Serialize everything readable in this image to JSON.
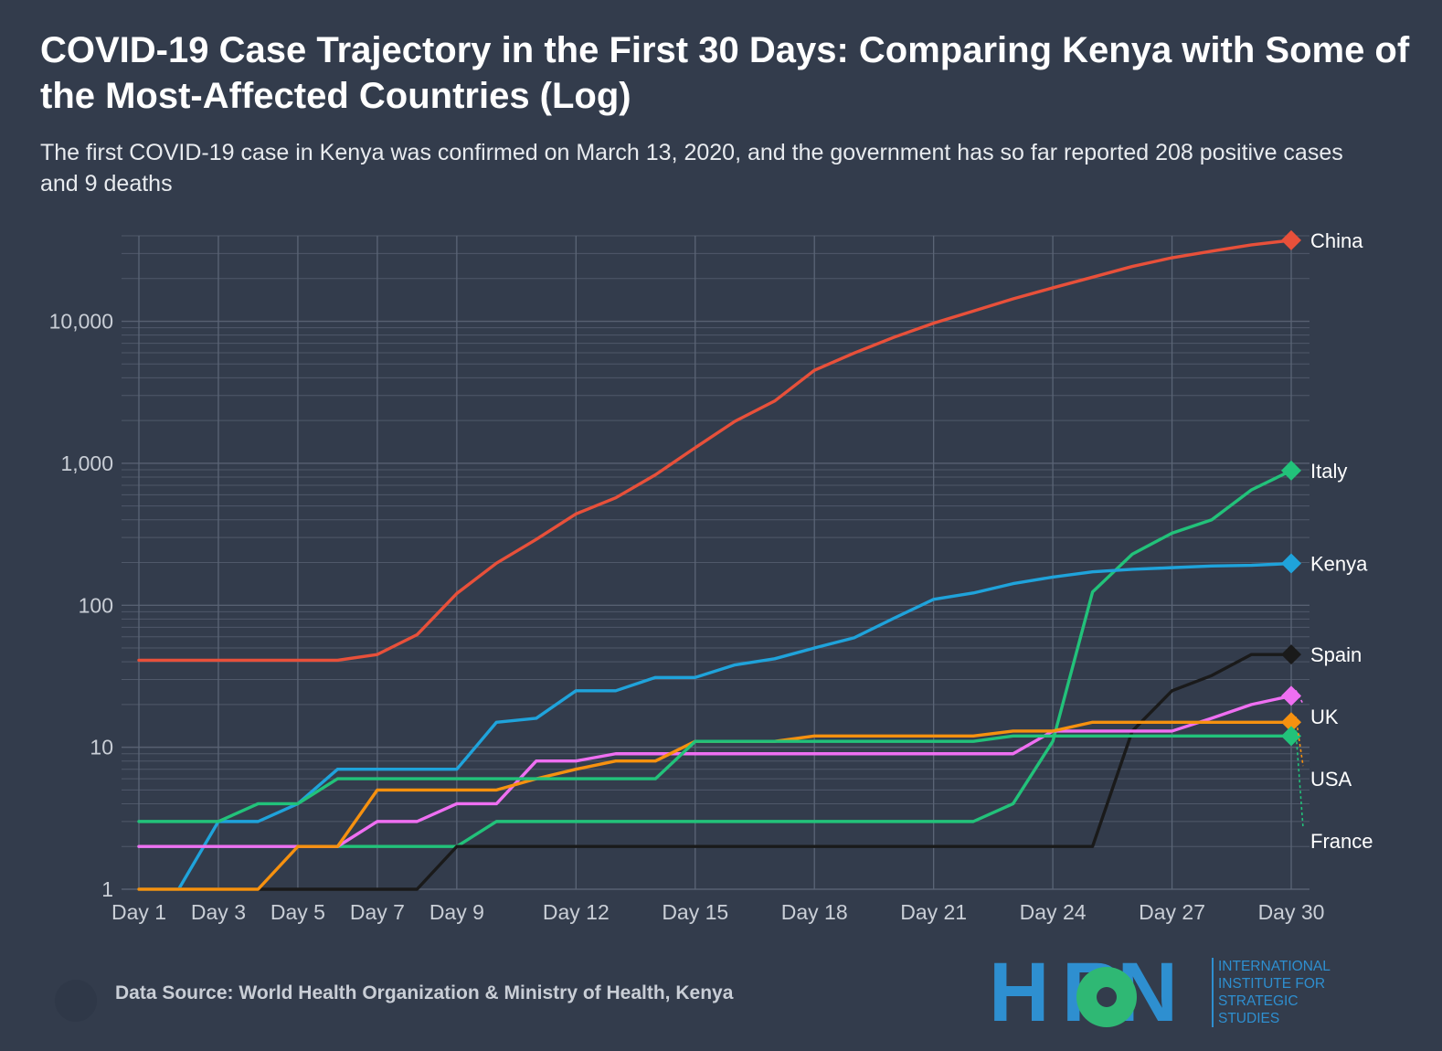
{
  "header": {
    "title": "COVID-19 Case Trajectory in the First 30 Days: Comparing Kenya with Some of the Most-Affected Countries (Log)",
    "subtitle": "The first COVID-19 case in Kenya was confirmed on March 13, 2020, and the government has so far reported 208 positive cases and 9 deaths"
  },
  "footer": {
    "source": "Data Source: World Health Organization & Ministry of Health, Kenya"
  },
  "logo": {
    "word": "H  RN",
    "text": "INTERNATIONAL\nINSTITUTE FOR\nSTRATEGIC\nSTUDIES"
  },
  "chart_data": {
    "type": "line",
    "title": "COVID-19 Case Trajectory in the First 30 Days: Comparing Kenya with Some of the Most-Affected Countries (Log)",
    "xlabel": "",
    "ylabel": "",
    "y_scale": "log",
    "ylim": [
      1,
      40000
    ],
    "grid": true,
    "legend": "direct labels at line ends (right)",
    "x": [
      1,
      2,
      3,
      4,
      5,
      6,
      7,
      8,
      9,
      10,
      11,
      12,
      13,
      14,
      15,
      16,
      17,
      18,
      19,
      20,
      21,
      22,
      23,
      24,
      25,
      26,
      27,
      28,
      29,
      30
    ],
    "x_ticks": [
      {
        "x": 1,
        "label": "Day 1"
      },
      {
        "x": 3,
        "label": "Day 3"
      },
      {
        "x": 5,
        "label": "Day 5"
      },
      {
        "x": 7,
        "label": "Day 7"
      },
      {
        "x": 9,
        "label": "Day 9"
      },
      {
        "x": 12,
        "label": "Day 12"
      },
      {
        "x": 15,
        "label": "Day 15"
      },
      {
        "x": 18,
        "label": "Day 18"
      },
      {
        "x": 21,
        "label": "Day 21"
      },
      {
        "x": 24,
        "label": "Day 24"
      },
      {
        "x": 27,
        "label": "Day 27"
      },
      {
        "x": 30,
        "label": "Day 30"
      }
    ],
    "y_ticks": [
      {
        "y": 1,
        "label": "1"
      },
      {
        "y": 10,
        "label": "10"
      },
      {
        "y": 100,
        "label": "100"
      },
      {
        "y": 1000,
        "label": "1,000"
      },
      {
        "y": 10000,
        "label": "10,000"
      }
    ],
    "series": [
      {
        "name": "China",
        "color": "#e8503a",
        "values": [
          41,
          41,
          41,
          41,
          41,
          41,
          45,
          62,
          121,
          198,
          291,
          440,
          571,
          830,
          1287,
          1975,
          2744,
          4515,
          5974,
          7711,
          9692,
          11791,
          14380,
          17205,
          20438,
          24324,
          28018,
          31161,
          34546,
          37198
        ]
      },
      {
        "name": "Italy",
        "color": "#22c27a",
        "values": [
          2,
          2,
          2,
          2,
          2,
          2,
          2,
          2,
          2,
          3,
          3,
          3,
          3,
          3,
          3,
          3,
          3,
          3,
          3,
          3,
          3,
          3,
          4,
          11,
          124,
          229,
          322,
          400,
          650,
          888
        ]
      },
      {
        "name": "Kenya",
        "color": "#1fa3db",
        "values": [
          1,
          1,
          3,
          3,
          4,
          7,
          7,
          7,
          7,
          15,
          16,
          25,
          25,
          31,
          31,
          38,
          42,
          50,
          59,
          81,
          110,
          122,
          142,
          158,
          172,
          179,
          184,
          189,
          191,
          197
        ]
      },
      {
        "name": "Spain",
        "color": "#1a1a1a",
        "values": [
          1,
          1,
          1,
          1,
          1,
          1,
          1,
          1,
          2,
          2,
          2,
          2,
          2,
          2,
          2,
          2,
          2,
          2,
          2,
          2,
          2,
          2,
          2,
          2,
          2,
          13,
          25,
          32,
          45,
          45
        ]
      },
      {
        "name": "UK",
        "color": "#ef6ff2",
        "values": [
          2,
          2,
          2,
          2,
          2,
          2,
          3,
          3,
          4,
          4,
          8,
          8,
          9,
          9,
          9,
          9,
          9,
          9,
          9,
          9,
          9,
          9,
          9,
          13,
          13,
          13,
          13,
          16,
          20,
          23
        ]
      },
      {
        "name": "USA",
        "color": "#f6910f",
        "values": [
          1,
          1,
          1,
          1,
          2,
          2,
          5,
          5,
          5,
          5,
          6,
          7,
          8,
          8,
          11,
          11,
          11,
          12,
          12,
          12,
          12,
          12,
          13,
          13,
          15,
          15,
          15,
          15,
          15,
          15
        ]
      },
      {
        "name": "France",
        "color": "#22c27a",
        "values": [
          3,
          3,
          3,
          4,
          4,
          6,
          6,
          6,
          6,
          6,
          6,
          6,
          6,
          6,
          11,
          11,
          11,
          11,
          11,
          11,
          11,
          11,
          12,
          12,
          12,
          12,
          12,
          12,
          12,
          12
        ]
      }
    ],
    "end_labels": [
      {
        "name": "China",
        "color": "#e8503a"
      },
      {
        "name": "Italy",
        "color": "#22c27a"
      },
      {
        "name": "Kenya",
        "color": "#1fa3db"
      },
      {
        "name": "Spain",
        "color": "#1a1a1a"
      },
      {
        "name": "UK",
        "color": "#ef6ff2"
      },
      {
        "name": "USA",
        "color": "#f6910f"
      },
      {
        "name": "France",
        "color": "#22c27a"
      }
    ]
  }
}
